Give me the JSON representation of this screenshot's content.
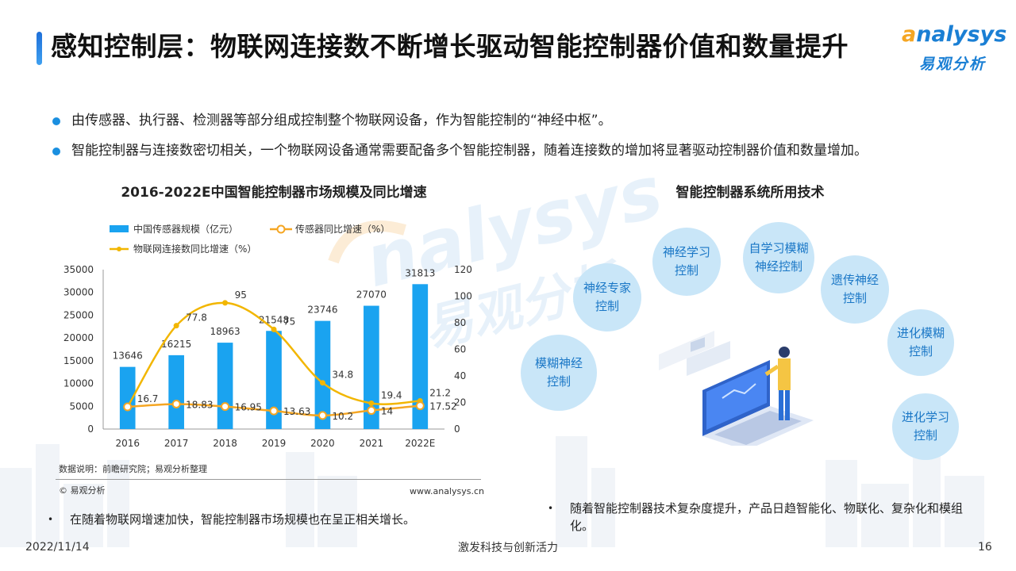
{
  "header": {
    "title": "感知控制层：物联网连接数不断增长驱动智能控制器价值和数量提升",
    "logo_en_o": "a",
    "logo_en_rest": "nalysys",
    "logo_cn": "易观分析"
  },
  "bullets": [
    "由传感器、执行器、检测器等部分组成控制整个物联网设备，作为智能控制的“神经中枢”。",
    "智能控制器与连接数密切相关，一个物联网设备通常需要配备多个智能控制器，随着连接数的增加将显著驱动控制器价值和数量增加。"
  ],
  "chart_title": "2016-2022E中国智能控制器市场规模及同比增速",
  "right_title": "智能控制器系统所用技术",
  "chart_data": {
    "type": "bar",
    "categories": [
      "2016",
      "2017",
      "2018",
      "2019",
      "2020",
      "2021",
      "2022E"
    ],
    "series": [
      {
        "name": "中国传感器规模（亿元）",
        "type": "bar",
        "axis": "left",
        "values": [
          13646,
          16215,
          18963,
          21548,
          23746,
          27070,
          31813
        ],
        "color": "#1aa3f0"
      },
      {
        "name": "传感器同比增速（%）",
        "type": "line",
        "axis": "right",
        "values": [
          16.7,
          18.83,
          16.95,
          13.63,
          10.2,
          14,
          17.52
        ],
        "color": "#f5a623"
      },
      {
        "name": "物联网连接数同比增速（%）",
        "type": "line",
        "axis": "right",
        "values": [
          16.7,
          77.8,
          95,
          75,
          34.8,
          19.4,
          21.2
        ],
        "color": "#f2b600"
      }
    ],
    "y_left": {
      "min": 0,
      "max": 35000,
      "ticks": [
        0,
        5000,
        10000,
        15000,
        20000,
        25000,
        30000,
        35000
      ]
    },
    "y_right": {
      "min": 0,
      "max": 120,
      "ticks": [
        0,
        20,
        40,
        60,
        80,
        100,
        120
      ]
    },
    "bar_labels": [
      "13646",
      "16215",
      "18963",
      "21548",
      "23746",
      "27070",
      "31813"
    ],
    "line1_labels": [
      "",
      "18.83",
      "16.95",
      "13.63",
      "10.2",
      "14",
      "17.52"
    ],
    "line2_labels": [
      "16.7",
      "77.8",
      "95",
      "75",
      "34.8",
      "19.4",
      "21.2"
    ],
    "legend_position": "top-left",
    "grid": false
  },
  "source": "数据说明：前瞻研究院；易观分析整理",
  "copyright": "© 易观分析",
  "website": "www.analysys.cn",
  "left_note": "在随着物联网增速加快，智能控制器市场规模也在呈正相关增长。",
  "right_note": "随着智能控制器技术复杂度提升，产品日趋智能化、物联化、复杂化和模组化。",
  "note_marker": "•",
  "techniques": [
    "神经专家控制",
    "神经学习控制",
    "自学习模糊神经控制",
    "遗传神经控制",
    "进化模糊控制",
    "模糊神经控制",
    "进化学习控制"
  ],
  "footer": {
    "date": "2022/11/14",
    "slogan": "激发科技与创新活力",
    "page": "16"
  },
  "colors": {
    "accent": "#1a8fe0",
    "bubble": "#c9e6f8",
    "bubble_text": "#1a77c6",
    "orange": "#f5a623"
  }
}
